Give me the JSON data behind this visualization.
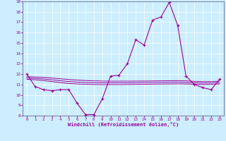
{
  "xlabel": "Windchill (Refroidissement éolien,°C)",
  "bg_color": "#cceeff",
  "line_color": "#990099",
  "grid_color": "#ffffff",
  "xmin": -0.5,
  "xmax": 23.5,
  "ymin": 8,
  "ymax": 19,
  "yticks": [
    8,
    9,
    10,
    11,
    12,
    13,
    14,
    15,
    16,
    17,
    18,
    19
  ],
  "xticks": [
    0,
    1,
    2,
    3,
    4,
    5,
    6,
    7,
    8,
    9,
    10,
    11,
    12,
    13,
    14,
    15,
    16,
    17,
    18,
    19,
    20,
    21,
    22,
    23
  ],
  "main_x": [
    0,
    1,
    2,
    3,
    4,
    5,
    6,
    7,
    8,
    9,
    10,
    11,
    12,
    13,
    14,
    15,
    16,
    17,
    18,
    19,
    20,
    21,
    22,
    23
  ],
  "main_y": [
    12.0,
    10.8,
    10.5,
    10.4,
    10.5,
    10.5,
    9.2,
    8.1,
    8.1,
    9.6,
    11.8,
    11.9,
    13.0,
    15.3,
    14.8,
    17.2,
    17.5,
    18.9,
    16.7,
    11.8,
    11.0,
    10.7,
    10.5,
    11.5
  ],
  "flat_line1_x": [
    0,
    1,
    2,
    3,
    4,
    5,
    6,
    7,
    8,
    9,
    10,
    11,
    12,
    13,
    14,
    15,
    16,
    17,
    18,
    19,
    20,
    21,
    22,
    23
  ],
  "flat_line1_y": [
    11.75,
    11.72,
    11.68,
    11.62,
    11.55,
    11.48,
    11.42,
    11.38,
    11.35,
    11.33,
    11.32,
    11.32,
    11.32,
    11.33,
    11.33,
    11.34,
    11.35,
    11.36,
    11.37,
    11.35,
    11.3,
    11.28,
    11.28,
    11.32
  ],
  "flat_line2_x": [
    0,
    1,
    2,
    3,
    4,
    5,
    6,
    7,
    8,
    9,
    10,
    11,
    12,
    13,
    14,
    15,
    16,
    17,
    18,
    19,
    20,
    21,
    22,
    23
  ],
  "flat_line2_y": [
    11.5,
    11.45,
    11.38,
    11.28,
    11.18,
    11.1,
    11.05,
    11.02,
    11.0,
    10.99,
    10.99,
    10.99,
    11.0,
    11.01,
    11.02,
    11.03,
    11.04,
    11.05,
    11.06,
    11.05,
    11.02,
    11.0,
    11.0,
    11.05
  ],
  "flat_line3_x": [
    0,
    1,
    2,
    3,
    4,
    5,
    6,
    7,
    8,
    9,
    10,
    11,
    12,
    13,
    14,
    15,
    16,
    17,
    18,
    19,
    20,
    21,
    22,
    23
  ],
  "flat_line3_y": [
    11.62,
    11.58,
    11.53,
    11.45,
    11.36,
    11.29,
    11.23,
    11.19,
    11.17,
    11.16,
    11.16,
    11.16,
    11.16,
    11.17,
    11.18,
    11.19,
    11.2,
    11.21,
    11.22,
    11.2,
    11.16,
    11.14,
    11.14,
    11.18
  ]
}
